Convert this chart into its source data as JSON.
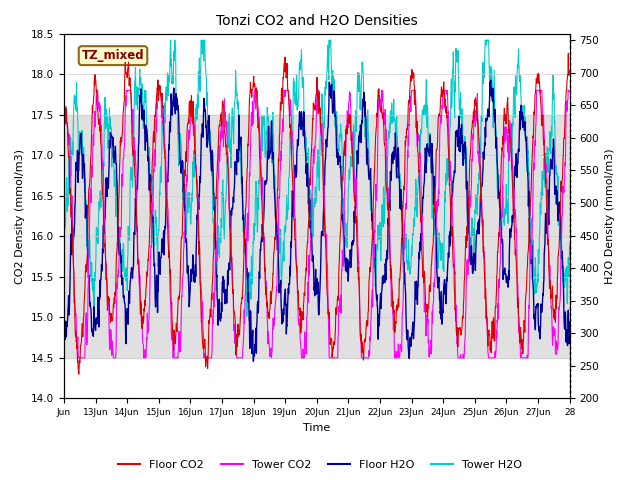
{
  "title": "Tonzi CO2 and H2O Densities",
  "xlabel": "Time",
  "ylabel_left": "CO2 Density (mmol/m3)",
  "ylabel_right": "H2O Density (mmol/m3)",
  "annotation": "TZ_mixed",
  "annotation_color": "#8B0000",
  "annotation_bg": "#FFFACD",
  "annotation_border": "#8B6914",
  "x_start": 12,
  "x_end": 28,
  "x_ticks": [
    12,
    13,
    14,
    15,
    16,
    17,
    18,
    19,
    20,
    21,
    22,
    23,
    24,
    25,
    26,
    27,
    28
  ],
  "x_tick_labels": [
    "Jun",
    "13Jun",
    "14Jun",
    "15Jun",
    "16Jun",
    "17Jun",
    "18Jun",
    "19Jun",
    "20Jun",
    "21Jun",
    "22Jun",
    "23Jun",
    "24Jun",
    "25Jun",
    "26Jun",
    "27Jun",
    "28"
  ],
  "ylim_left": [
    14.0,
    18.5
  ],
  "ylim_right": [
    200,
    760
  ],
  "yticks_left": [
    14.0,
    14.5,
    15.0,
    15.5,
    16.0,
    16.5,
    17.0,
    17.5,
    18.0,
    18.5
  ],
  "yticks_right": [
    200,
    250,
    300,
    350,
    400,
    450,
    500,
    550,
    600,
    650,
    700,
    750
  ],
  "color_floor_co2": "#DD0000",
  "color_tower_co2": "#FF00FF",
  "color_floor_h2o": "#000099",
  "color_tower_h2o": "#00CCCC",
  "bg_band_ylim": [
    14.5,
    17.5
  ],
  "grid_color": "#CCCCCC",
  "seed": 12345
}
